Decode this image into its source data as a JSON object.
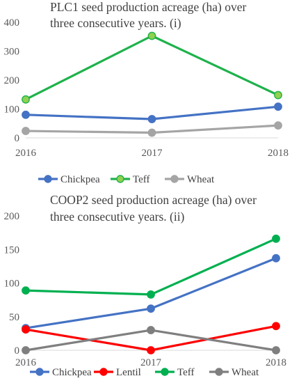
{
  "chart_data": [
    {
      "type": "line",
      "title_lines": [
        "PLC1 seed production acreage (ha) over",
        "three consecutive years. (i)"
      ],
      "categories": [
        "2016",
        "2017",
        "2018"
      ],
      "ylim": [
        0,
        400
      ],
      "yticks": [
        "0",
        "100",
        "200",
        "300",
        "400"
      ],
      "grid": false,
      "legend_position": "bottom",
      "series": [
        {
          "name": "Chickpea",
          "values": [
            80,
            65,
            108
          ],
          "color": "#4472C4",
          "marker_fill": "#4472C4"
        },
        {
          "name": "Teff",
          "values": [
            133,
            353,
            148
          ],
          "color": "#1EB24B",
          "marker_fill": "#92D050"
        },
        {
          "name": "Wheat",
          "values": [
            24,
            18,
            43
          ],
          "color": "#A5A5A5",
          "marker_fill": "#A5A5A5"
        }
      ]
    },
    {
      "type": "line",
      "title_lines": [
        "COOP2 seed production acreage (ha) over",
        "three consecutive years. (ii)"
      ],
      "categories": [
        "2016",
        "2017",
        "2018"
      ],
      "ylim": [
        0,
        200
      ],
      "yticks": [
        "0",
        "50",
        "100",
        "150",
        "200"
      ],
      "grid": false,
      "legend_position": "bottom",
      "series": [
        {
          "name": "Chickpea",
          "values": [
            33,
            62,
            137
          ],
          "color": "#4472C4",
          "marker_fill": "#4472C4"
        },
        {
          "name": "Lentil",
          "values": [
            31,
            0,
            36
          ],
          "color": "#FF0000",
          "marker_fill": "#FF0000"
        },
        {
          "name": "Teff",
          "values": [
            89,
            83,
            166
          ],
          "color": "#00B050",
          "marker_fill": "#00B050"
        },
        {
          "name": "Wheat",
          "values": [
            0,
            30,
            0
          ],
          "color": "#7F7F7F",
          "marker_fill": "#7F7F7F"
        }
      ]
    }
  ]
}
